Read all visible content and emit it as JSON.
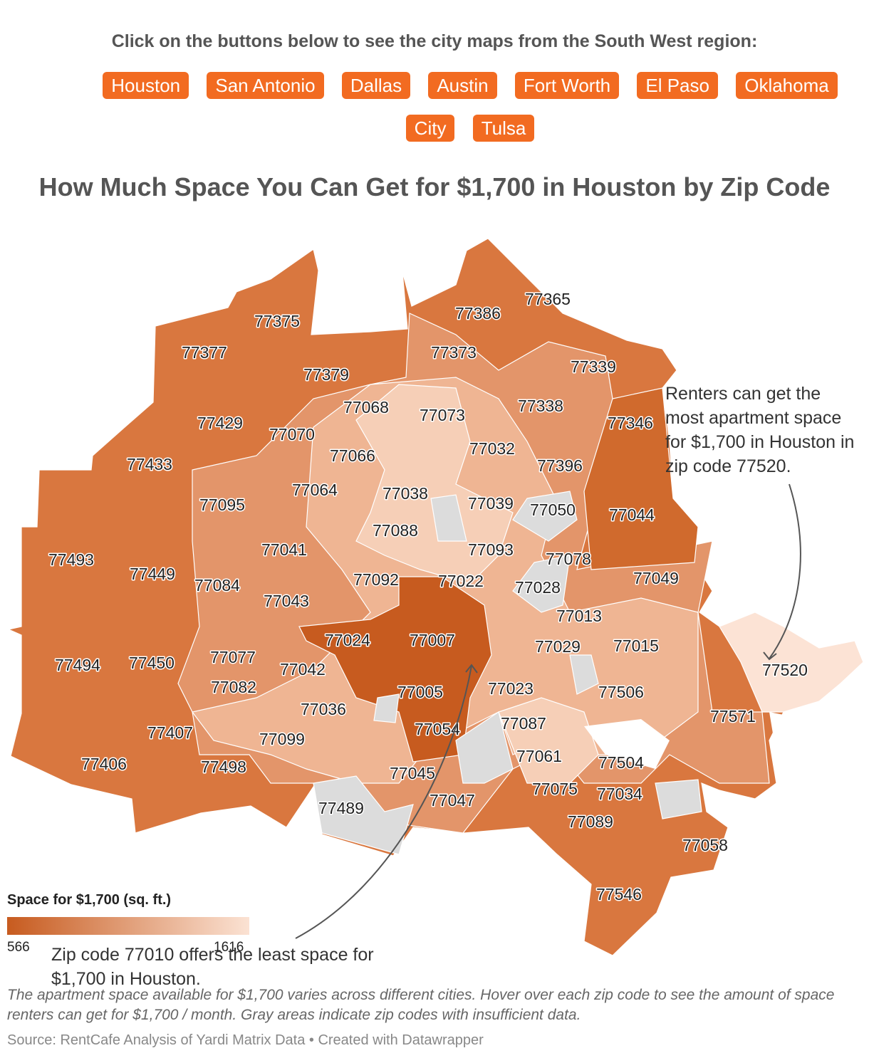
{
  "header": {
    "prompt": "Click on the buttons below to see the city maps from the South West region:",
    "buttons": [
      "Houston",
      "San Antonio",
      "Dallas",
      "Austin",
      "Fort Worth",
      "El Paso",
      "Oklahoma City",
      "Tulsa"
    ]
  },
  "map": {
    "title": "How Much Space You Can Get for $1,700 in Houston by Zip Code",
    "zip_codes": [
      "77365",
      "77386",
      "77375",
      "77377",
      "77373",
      "77339",
      "77379",
      "77068",
      "77073",
      "77338",
      "77346",
      "77429",
      "77070",
      "77066",
      "77032",
      "77396",
      "77433",
      "77064",
      "77038",
      "77039",
      "77050",
      "77095",
      "77044",
      "77088",
      "77093",
      "77041",
      "77493",
      "77078",
      "77449",
      "77084",
      "77092",
      "77022",
      "77049",
      "77028",
      "77043",
      "77013",
      "77024",
      "77007",
      "77029",
      "77015",
      "77520",
      "77494",
      "77450",
      "77077",
      "77042",
      "77082",
      "77005",
      "77023",
      "77506",
      "77036",
      "77571",
      "77407",
      "77054",
      "77087",
      "77099",
      "77061",
      "77504",
      "77406",
      "77498",
      "77045",
      "77075",
      "77034",
      "77489",
      "77047",
      "77089",
      "77058",
      "77546"
    ],
    "legend": {
      "title": "Space for $1,700 (sq. ft.)",
      "min": 566,
      "max": 1616,
      "colors": [
        "#c75b1f",
        "#fbe2d3"
      ]
    },
    "annotations": [
      "Renters can get the most apartment space for $1,700 in Houston in zip code 77520.",
      "Zip code 77010 offers the least space for $1,700 in Houston."
    ]
  },
  "footer": {
    "description": "The apartment space available for $1,700 varies across different cities. Hover over each zip code to see the amount of space renters can get for $1,700 / month. Gray areas indicate zip codes with insufficient data.",
    "source": "Source: RentCafe Analysis of Yardi Matrix Data • Created with Datawrapper"
  }
}
